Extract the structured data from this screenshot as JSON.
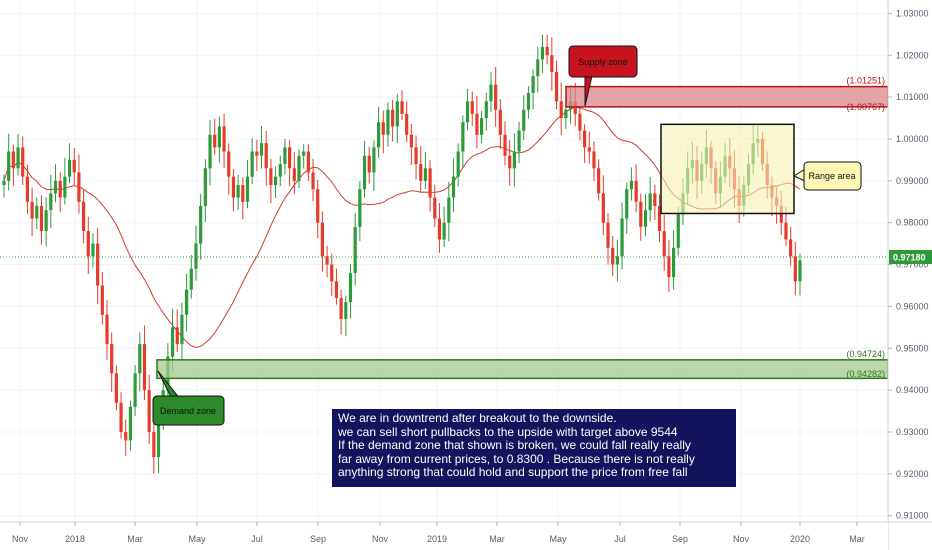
{
  "chart_data": {
    "type": "candlestick",
    "price_axis": {
      "ticks": [
        "1.03000",
        "1.02000",
        "1.01000",
        "1.00000",
        "0.99000",
        "0.98000",
        "0.97000",
        "0.96000",
        "0.95000",
        "0.94000",
        "0.93000",
        "0.92000",
        "0.91000"
      ],
      "range": [
        0.9085,
        1.0332
      ]
    },
    "time_axis": {
      "ticks": [
        "Nov",
        "2018",
        "Mar",
        "May",
        "Jul",
        "Sep",
        "Nov",
        "2019",
        "Mar",
        "May",
        "Jul",
        "Sep",
        "Nov",
        "2020",
        "Mar"
      ]
    },
    "last_price": 0.9718,
    "last_price_label": "0.97180",
    "moving_average": {
      "color": "#d33b2c"
    },
    "closes": [
      0.99,
      0.997,
      0.993,
      0.998,
      0.991,
      0.985,
      0.981,
      0.984,
      0.978,
      0.983,
      0.987,
      0.99,
      0.986,
      0.991,
      0.995,
      0.992,
      0.985,
      0.978,
      0.972,
      0.975,
      0.965,
      0.958,
      0.951,
      0.944,
      0.937,
      0.93,
      0.928,
      0.936,
      0.944,
      0.951,
      0.94,
      0.93,
      0.924,
      0.932,
      0.94,
      0.948,
      0.955,
      0.951,
      0.958,
      0.964,
      0.969,
      0.975,
      0.984,
      0.993,
      1.001,
      0.998,
      1.003,
      0.997,
      0.991,
      0.986,
      0.989,
      0.985,
      0.991,
      0.997,
      0.996,
      0.999,
      0.993,
      0.989,
      0.991,
      0.994,
      0.998,
      0.993,
      0.99,
      0.996,
      0.997,
      0.992,
      0.988,
      0.98,
      0.972,
      0.97,
      0.966,
      0.962,
      0.957,
      0.961,
      0.968,
      0.979,
      0.988,
      0.996,
      0.992,
      0.998,
      1.004,
      1.001,
      1.007,
      1.003,
      1.009,
      1.006,
      1.001,
      0.998,
      0.994,
      0.99,
      0.993,
      0.986,
      0.981,
      0.976,
      0.98,
      0.986,
      0.991,
      0.997,
      1.004,
      1.009,
      1.006,
      1.001,
      1.005,
      1.009,
      1.013,
      1.007,
      1.001,
      0.996,
      0.993,
      0.997,
      1.002,
      1.007,
      1.011,
      1.015,
      1.019,
      1.022,
      1.02,
      1.016,
      1.009,
      1.005,
      1.007,
      1.009,
      1.006,
      1.002,
      0.998,
      0.997,
      0.993,
      0.987,
      0.98,
      0.974,
      0.97,
      0.972,
      0.981,
      0.988,
      0.99,
      0.985,
      0.979,
      0.983,
      0.987,
      0.984,
      0.978,
      0.972,
      0.967,
      0.974,
      0.982,
      0.987,
      0.993,
      0.995,
      0.99,
      0.994,
      0.998,
      0.993,
      0.987,
      0.991,
      0.996,
      0.993,
      0.988,
      0.984,
      0.989,
      0.994,
      0.999,
      1.0,
      0.994,
      0.989,
      0.986,
      0.984,
      0.98,
      0.976,
      0.972,
      0.966,
      0.971
    ]
  },
  "annotations": {
    "supply_callout": "Supply zone",
    "demand_callout": "Demand zone",
    "range_callout": "Range area",
    "supply_upper_label": "(1.01251)",
    "supply_lower_label": "(1.00767)",
    "demand_upper_label": "(0.94724)",
    "demand_lower_label": "(0.94282)",
    "supply_colors": {
      "fill": "#d9868a",
      "stroke": "#b3141b",
      "callout": "#c8141e"
    },
    "demand_colors": {
      "fill": "#a4c98e",
      "stroke": "#2f7a1e",
      "callout": "#2d8a2a"
    },
    "range_colors": {
      "fill": "#f7f2b3",
      "stroke": "#111111",
      "callout": "#fdf5b4"
    }
  },
  "note": {
    "lines": [
      "We are in downtrend after breakout to the downside.",
      "we can sell short pullbacks to the upside with target above 9544",
      "If the demand zone that shown is broken, we could fall really really",
      "far away from current prices, to 0.8300 . Because there is not really",
      "anything strong that could hold and support the price from free fall"
    ],
    "background": "#14135d"
  },
  "colors": {
    "up_candle": "#2e9b3a",
    "down_candle": "#e43b2b",
    "last_price_tag": "#2e9b3a"
  }
}
